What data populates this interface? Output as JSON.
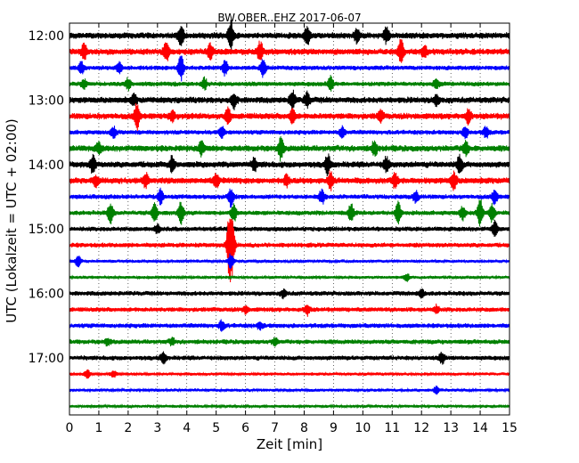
{
  "chart_data": {
    "type": "line",
    "title": "BW.OBER..EHZ 2017-06-07",
    "xlabel": "Zeit  [min]",
    "ylabel": "UTC (Lokalzeit = UTC + 02:00)",
    "xlim": [
      0,
      15
    ],
    "x_ticks": [
      "0",
      "1",
      "2",
      "3",
      "4",
      "5",
      "6",
      "7",
      "8",
      "9",
      "10",
      "11",
      "12",
      "13",
      "14",
      "15"
    ],
    "y_tick_labels": [
      "12:00",
      "13:00",
      "14:00",
      "15:00",
      "16:00",
      "17:00"
    ],
    "grid": "vertical dotted",
    "color_cycle": [
      "#000000",
      "#ff0000",
      "#0000ff",
      "#008000"
    ],
    "series": [
      {
        "start": "12:00",
        "amp": 4,
        "events": [
          [
            3.8,
            12
          ],
          [
            5.5,
            16
          ],
          [
            8.1,
            10
          ],
          [
            9.8,
            8
          ],
          [
            10.8,
            8
          ]
        ]
      },
      {
        "start": "12:15",
        "amp": 4,
        "events": [
          [
            0.5,
            8
          ],
          [
            3.3,
            10
          ],
          [
            4.8,
            8
          ],
          [
            6.5,
            10
          ],
          [
            11.3,
            14
          ],
          [
            12.1,
            6
          ]
        ]
      },
      {
        "start": "12:30",
        "amp": 3,
        "events": [
          [
            0.4,
            6
          ],
          [
            1.7,
            6
          ],
          [
            3.8,
            14
          ],
          [
            5.3,
            8
          ],
          [
            6.6,
            10
          ]
        ]
      },
      {
        "start": "12:45",
        "amp": 3,
        "events": [
          [
            0.5,
            5
          ],
          [
            2.0,
            6
          ],
          [
            4.6,
            6
          ],
          [
            8.9,
            8
          ],
          [
            12.5,
            6
          ]
        ]
      },
      {
        "start": "13:00",
        "amp": 4,
        "events": [
          [
            2.2,
            6
          ],
          [
            5.6,
            8
          ],
          [
            7.6,
            10
          ],
          [
            8.1,
            8
          ],
          [
            12.5,
            6
          ]
        ]
      },
      {
        "start": "13:15",
        "amp": 4,
        "events": [
          [
            2.3,
            14
          ],
          [
            3.5,
            6
          ],
          [
            5.4,
            8
          ],
          [
            7.6,
            8
          ],
          [
            10.6,
            6
          ],
          [
            13.6,
            8
          ]
        ]
      },
      {
        "start": "13:30",
        "amp": 3,
        "events": [
          [
            1.5,
            6
          ],
          [
            5.2,
            6
          ],
          [
            9.3,
            6
          ],
          [
            13.5,
            6
          ],
          [
            14.2,
            6
          ]
        ]
      },
      {
        "start": "13:45",
        "amp": 4,
        "events": [
          [
            1.0,
            6
          ],
          [
            4.5,
            8
          ],
          [
            7.2,
            12
          ],
          [
            10.4,
            8
          ],
          [
            13.5,
            8
          ]
        ]
      },
      {
        "start": "14:00",
        "amp": 4,
        "events": [
          [
            0.8,
            10
          ],
          [
            3.5,
            8
          ],
          [
            6.3,
            6
          ],
          [
            8.8,
            10
          ],
          [
            10.8,
            8
          ],
          [
            13.3,
            10
          ]
        ]
      },
      {
        "start": "14:15",
        "amp": 4,
        "events": [
          [
            0.9,
            6
          ],
          [
            2.6,
            8
          ],
          [
            5.0,
            8
          ],
          [
            7.4,
            6
          ],
          [
            8.9,
            10
          ],
          [
            11.1,
            8
          ],
          [
            13.1,
            10
          ]
        ]
      },
      {
        "start": "14:30",
        "amp": 3,
        "events": [
          [
            3.1,
            8
          ],
          [
            5.5,
            10
          ],
          [
            8.6,
            8
          ],
          [
            11.8,
            6
          ],
          [
            14.5,
            8
          ]
        ]
      },
      {
        "start": "14:45",
        "amp": 3,
        "events": [
          [
            1.4,
            12
          ],
          [
            2.9,
            10
          ],
          [
            3.8,
            12
          ],
          [
            5.6,
            10
          ],
          [
            9.6,
            10
          ],
          [
            11.2,
            12
          ],
          [
            13.4,
            8
          ],
          [
            14.0,
            16
          ],
          [
            14.4,
            10
          ]
        ]
      },
      {
        "start": "15:00",
        "amp": 3,
        "events": [
          [
            3.0,
            5
          ],
          [
            5.5,
            8
          ],
          [
            14.5,
            8
          ]
        ]
      },
      {
        "start": "15:15",
        "amp": 3,
        "events": [
          [
            5.45,
            32
          ],
          [
            5.55,
            24
          ]
        ]
      },
      {
        "start": "15:30",
        "amp": 2,
        "events": [
          [
            0.3,
            6
          ],
          [
            5.5,
            8
          ]
        ]
      },
      {
        "start": "15:45",
        "amp": 2,
        "events": [
          [
            11.5,
            4
          ]
        ]
      },
      {
        "start": "16:00",
        "amp": 3,
        "events": [
          [
            7.3,
            4
          ],
          [
            12.0,
            4
          ]
        ]
      },
      {
        "start": "16:15",
        "amp": 3,
        "events": [
          [
            6.0,
            4
          ],
          [
            8.1,
            6
          ],
          [
            12.5,
            4
          ]
        ]
      },
      {
        "start": "16:30",
        "amp": 3,
        "events": [
          [
            5.2,
            6
          ],
          [
            6.5,
            4
          ]
        ]
      },
      {
        "start": "16:45",
        "amp": 3,
        "events": [
          [
            1.3,
            4
          ],
          [
            3.5,
            4
          ],
          [
            7.0,
            4
          ]
        ]
      },
      {
        "start": "17:00",
        "amp": 3,
        "events": [
          [
            3.2,
            6
          ],
          [
            12.7,
            6
          ]
        ]
      },
      {
        "start": "17:15",
        "amp": 2,
        "events": [
          [
            0.6,
            5
          ],
          [
            1.5,
            4
          ]
        ]
      },
      {
        "start": "17:30",
        "amp": 2,
        "events": [
          [
            12.5,
            4
          ]
        ]
      },
      {
        "start": "17:45",
        "amp": 2,
        "events": []
      }
    ]
  }
}
